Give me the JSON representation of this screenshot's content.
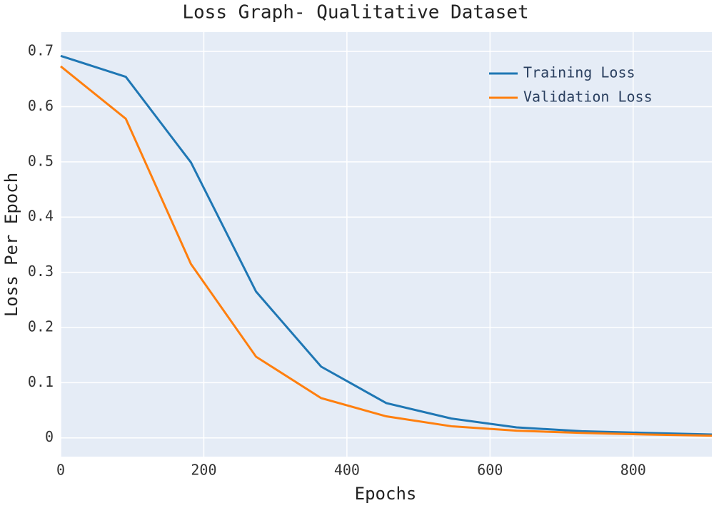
{
  "chart_data": {
    "type": "line",
    "title": "Loss Graph- Qualitative Dataset",
    "x_label": "Epochs",
    "y_label": "Loss Per Epoch",
    "x": [
      0,
      91,
      182,
      273,
      364,
      455,
      546,
      637,
      728,
      819,
      910
    ],
    "series": [
      {
        "name": "Training Loss",
        "color": "#1f77b4",
        "values": [
          0.692,
          0.654,
          0.499,
          0.265,
          0.129,
          0.063,
          0.035,
          0.019,
          0.012,
          0.009,
          0.006
        ]
      },
      {
        "name": "Validation Loss",
        "color": "#ff7f0e",
        "values": [
          0.673,
          0.578,
          0.315,
          0.147,
          0.072,
          0.039,
          0.021,
          0.013,
          0.009,
          0.006,
          0.004
        ]
      }
    ],
    "xlim": [
      0,
      910
    ],
    "xticks": [
      0,
      200,
      400,
      600,
      800
    ],
    "ylim": [
      -0.034,
      0.735
    ],
    "yticks": [
      0,
      0.1,
      0.2,
      0.3,
      0.4,
      0.5,
      0.6,
      0.7
    ],
    "grid": true,
    "legend": "top-right"
  }
}
